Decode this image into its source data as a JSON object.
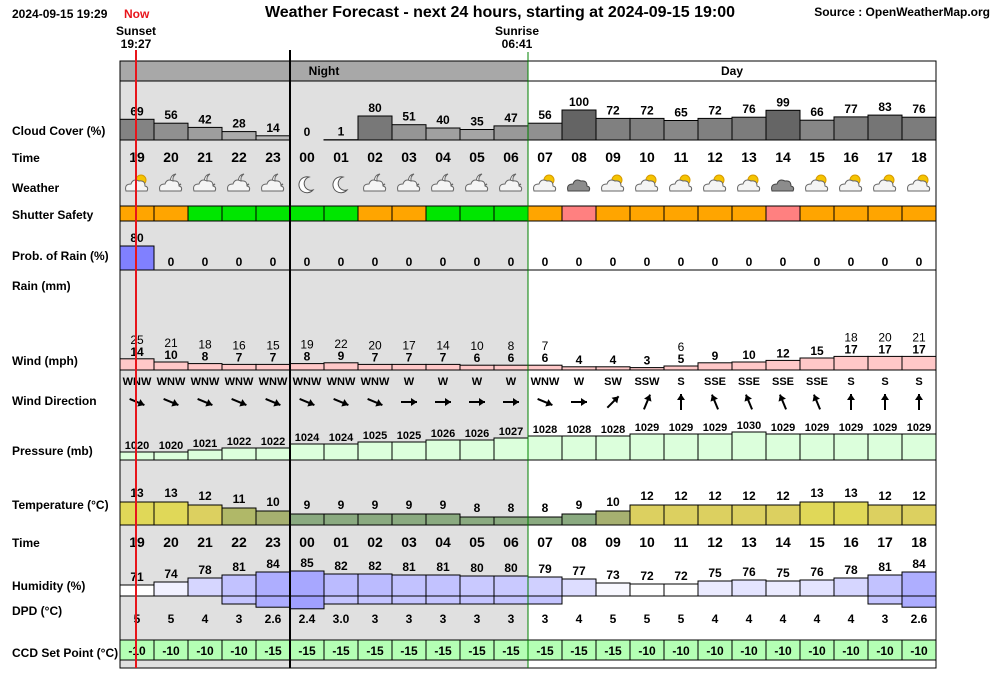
{
  "header": {
    "timestamp": "2024-09-15 19:29",
    "now_label": "Now",
    "title": "Weather Forecast - next 24 hours, starting at 2024-09-15 19:00",
    "source": "Source : OpenWeatherMap.org"
  },
  "markers": {
    "sunset": {
      "label": "Sunset",
      "time": "19:27"
    },
    "sunrise": {
      "label": "Sunrise",
      "time": "06:41"
    }
  },
  "periods": {
    "night": "Night",
    "day": "Day"
  },
  "row_labels": {
    "cloud_cover": "Cloud Cover (%)",
    "time": "Time",
    "weather": "Weather",
    "shutter_safety": "Shutter Safety",
    "prob_rain": "Prob. of Rain (%)",
    "rain": "Rain (mm)",
    "wind": "Wind (mph)",
    "wind_direction": "Wind Direction",
    "pressure": "Pressure (mb)",
    "temperature": "Temperature (°C)",
    "time2": "Time",
    "humidity": "Humidity (%)",
    "dpd": "DPD (°C)",
    "ccd": "CCD Set Point (°C)"
  },
  "colors": {
    "night_bg": "#e0e0e0",
    "night_header": "#a8a8a8",
    "day_header": "#ffffff",
    "grid": "#000000",
    "now_line": "#e8151b",
    "sunrise_line": "#008000",
    "shutter_safe": "#00e600",
    "shutter_caution": "#ffa500",
    "shutter_unsafe": "#ff8080",
    "rain_bar": "#8080ff",
    "wind_bar": "#ffc8c8",
    "pressure_bar": "#dcffdc",
    "ccd_bar": "#b4ffb4",
    "humidity_low": "#ffffff",
    "humidity_high": "#a0a0ff"
  },
  "chart_data": {
    "type": "table",
    "hours": [
      "19",
      "20",
      "21",
      "22",
      "23",
      "00",
      "01",
      "02",
      "03",
      "04",
      "05",
      "06",
      "07",
      "08",
      "09",
      "10",
      "11",
      "12",
      "13",
      "14",
      "15",
      "16",
      "17",
      "18"
    ],
    "cloud_cover": [
      69,
      56,
      42,
      28,
      14,
      0,
      1,
      80,
      51,
      40,
      35,
      47,
      56,
      100,
      72,
      72,
      65,
      72,
      76,
      99,
      66,
      77,
      83,
      76
    ],
    "weather_icons": [
      "partly-cloudy-day-icon",
      "partly-cloudy-night-icon",
      "partly-cloudy-night-icon",
      "partly-cloudy-night-icon",
      "partly-cloudy-night-icon",
      "clear-night-icon",
      "clear-night-icon",
      "partly-cloudy-night-icon",
      "partly-cloudy-night-icon",
      "partly-cloudy-night-icon",
      "partly-cloudy-night-icon",
      "partly-cloudy-night-icon",
      "partly-cloudy-day-icon",
      "overcast-icon",
      "partly-cloudy-day-icon",
      "partly-cloudy-day-icon",
      "partly-cloudy-day-icon",
      "partly-cloudy-day-icon",
      "partly-cloudy-day-icon",
      "overcast-icon",
      "partly-cloudy-day-icon",
      "partly-cloudy-day-icon",
      "partly-cloudy-day-icon",
      "partly-cloudy-day-icon"
    ],
    "shutter_safety": [
      "caution",
      "caution",
      "safe",
      "safe",
      "safe",
      "safe",
      "safe",
      "caution",
      "caution",
      "safe",
      "safe",
      "safe",
      "caution",
      "unsafe",
      "caution",
      "caution",
      "caution",
      "caution",
      "caution",
      "unsafe",
      "caution",
      "caution",
      "caution",
      "caution"
    ],
    "prob_rain": [
      80,
      0,
      0,
      0,
      0,
      0,
      0,
      0,
      0,
      0,
      0,
      0,
      0,
      0,
      0,
      0,
      0,
      0,
      0,
      0,
      0,
      0,
      0,
      0
    ],
    "rain_mm": [
      0,
      0,
      0,
      0,
      0,
      0,
      0,
      0,
      0,
      0,
      0,
      0,
      0,
      0,
      0,
      0,
      0,
      0,
      0,
      0,
      0,
      0,
      0,
      0
    ],
    "wind_gust": [
      25,
      21,
      18,
      16,
      15,
      19,
      22,
      20,
      17,
      14,
      10,
      8,
      7,
      null,
      null,
      null,
      6,
      null,
      null,
      null,
      null,
      18,
      20,
      21
    ],
    "wind_speed": [
      14,
      10,
      8,
      7,
      7,
      8,
      9,
      7,
      7,
      7,
      6,
      6,
      6,
      4,
      4,
      3,
      5,
      9,
      10,
      12,
      15,
      17,
      17,
      17
    ],
    "wind_dir": [
      "WNW",
      "WNW",
      "WNW",
      "WNW",
      "WNW",
      "WNW",
      "WNW",
      "WNW",
      "W",
      "W",
      "W",
      "W",
      "WNW",
      "W",
      "SW",
      "SSW",
      "S",
      "SSE",
      "SSE",
      "SSE",
      "SSE",
      "S",
      "S",
      "S"
    ],
    "wind_dir_deg": [
      292.5,
      292.5,
      292.5,
      292.5,
      292.5,
      292.5,
      292.5,
      292.5,
      270,
      270,
      270,
      270,
      292.5,
      270,
      225,
      202.5,
      180,
      157.5,
      157.5,
      157.5,
      157.5,
      180,
      180,
      180
    ],
    "pressure": [
      1020,
      1020,
      1021,
      1022,
      1022,
      1024,
      1024,
      1025,
      1025,
      1026,
      1026,
      1027,
      1028,
      1028,
      1028,
      1029,
      1029,
      1029,
      1030,
      1029,
      1029,
      1029,
      1029,
      1029
    ],
    "temperature": [
      13,
      13,
      12,
      11,
      10,
      9,
      9,
      9,
      9,
      9,
      8,
      8,
      8,
      9,
      10,
      12,
      12,
      12,
      12,
      12,
      13,
      13,
      12,
      12
    ],
    "humidity": [
      71,
      74,
      78,
      81,
      84,
      85,
      82,
      82,
      81,
      81,
      80,
      80,
      79,
      77,
      73,
      72,
      72,
      75,
      76,
      75,
      76,
      78,
      81,
      84
    ],
    "dpd": [
      "5",
      "5",
      "4",
      "3",
      "2.6",
      "2.4",
      "3.0",
      "3",
      "3",
      "3",
      "3",
      "3",
      "3",
      "4",
      "5",
      "5",
      "5",
      "4",
      "4",
      "4",
      "4",
      "4",
      "3",
      "2.6"
    ],
    "ccd_set_point": [
      -10,
      -10,
      -10,
      -10,
      -15,
      -15,
      -15,
      -15,
      -15,
      -15,
      -15,
      -15,
      -15,
      -15,
      -15,
      -10,
      -10,
      -10,
      -10,
      -10,
      -10,
      -10,
      -10,
      -10
    ]
  }
}
